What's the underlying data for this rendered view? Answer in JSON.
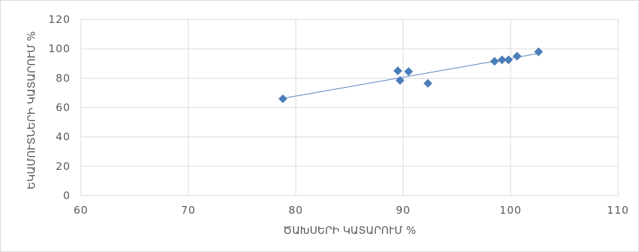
{
  "chart_data": {
    "type": "scatter",
    "title": "",
    "xlabel": "ԾԱԽՍԵՐԻ ԿԱՏԱՐՈՒՄ %",
    "ylabel": "ԵԿԱՄՈՒՏՆԵՐԻ ԿԱՏԱՐՈՒՄ %",
    "xlim": [
      60,
      110
    ],
    "ylim": [
      0,
      120
    ],
    "x_ticks": [
      "60",
      "70",
      "80",
      "90",
      "100",
      "110"
    ],
    "y_ticks": [
      "0",
      "20",
      "40",
      "60",
      "80",
      "100",
      "120"
    ],
    "grid": true,
    "legend": "none",
    "series": [
      {
        "color": "#4a7ebb",
        "marker": "diamond",
        "points": [
          {
            "x": 78.8,
            "y": 66
          },
          {
            "x": 89.5,
            "y": 85
          },
          {
            "x": 89.7,
            "y": 78.5
          },
          {
            "x": 90.5,
            "y": 84.5
          },
          {
            "x": 92.3,
            "y": 76.5
          },
          {
            "x": 98.5,
            "y": 91.5
          },
          {
            "x": 99.2,
            "y": 92.5
          },
          {
            "x": 99.8,
            "y": 92.5
          },
          {
            "x": 100.6,
            "y": 95
          },
          {
            "x": 102.6,
            "y": 98
          }
        ]
      }
    ],
    "trendline": {
      "type": "linear",
      "color": "#4a7ebb",
      "from_x": 78.8,
      "to_x": 102.6
    }
  }
}
